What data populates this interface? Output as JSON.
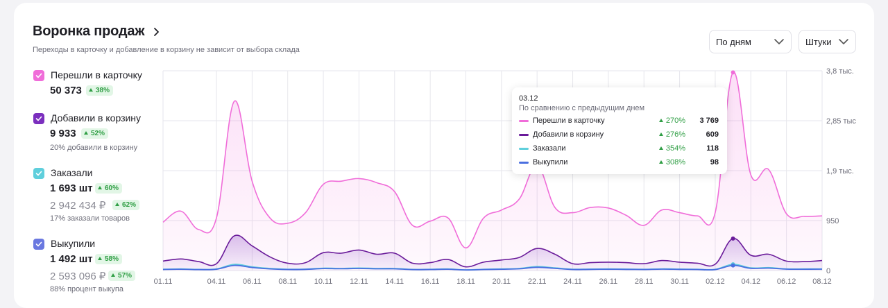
{
  "header": {
    "title": "Воронка продаж",
    "subtitle": "Переходы в карточку и добавление в корзину не зависит от выбора склада"
  },
  "controls": {
    "period": "По дням",
    "units": "Штуки"
  },
  "metrics": [
    {
      "label": "Перешли в карточку",
      "value": "50 373",
      "change": "38%",
      "color": "#f06dd9"
    },
    {
      "label": "Добавили в корзину",
      "value": "9 933",
      "change": "52%",
      "note": "20% добавили в корзину",
      "color": "#7b2fbe"
    },
    {
      "label": "Заказали",
      "value": "1 693 шт",
      "change": "60%",
      "amount": "2 942 434 ₽",
      "amount_change": "62%",
      "note": "17% заказали товаров",
      "color": "#5fcfdc"
    },
    {
      "label": "Выкупили",
      "value": "1 492 шт",
      "change": "58%",
      "amount": "2 593 096 ₽",
      "amount_change": "57%",
      "note": "88% процент выкупа",
      "color": "#6a78e0"
    }
  ],
  "tooltip": {
    "date": "03.12",
    "subtitle": "По сравнению с предыдущим днем",
    "rows": [
      {
        "name": "Перешли в карточку",
        "change": "270%",
        "value": "3 769",
        "color": "#f06dd9"
      },
      {
        "name": "Добавили в корзину",
        "change": "276%",
        "value": "609",
        "color": "#6a1b9a"
      },
      {
        "name": "Заказали",
        "change": "354%",
        "value": "118",
        "color": "#5fcfdc"
      },
      {
        "name": "Выкупили",
        "change": "308%",
        "value": "98",
        "color": "#4a6fe0"
      }
    ]
  },
  "chart_data": {
    "type": "line",
    "x_tick_labels": [
      "01.11",
      "04.11",
      "06.11",
      "08.11",
      "10.11",
      "12.11",
      "14.11",
      "16.11",
      "18.11",
      "20.11",
      "22.11",
      "24.11",
      "26.11",
      "28.11",
      "30.11",
      "02.12",
      "04.12",
      "06.12",
      "08.12"
    ],
    "y_tick_labels": [
      "3,8 тыс.",
      "2,85 тыс",
      "1,9 тыс.",
      "950",
      "0"
    ],
    "y_ticks": [
      3800,
      2850,
      1900,
      950,
      0
    ],
    "ylim": [
      0,
      3800
    ],
    "highlight_x": "03.12",
    "series": [
      {
        "name": "Перешли в карточку",
        "color": "#f06dd9",
        "fill": true,
        "points": [
          [
            "01.11",
            920
          ],
          [
            "02.11",
            1130
          ],
          [
            "03.11",
            780
          ],
          [
            "04.11",
            1000
          ],
          [
            "05.11",
            3220
          ],
          [
            "06.11",
            1700
          ],
          [
            "07.11",
            1000
          ],
          [
            "08.11",
            900
          ],
          [
            "09.11",
            1100
          ],
          [
            "10.11",
            1640
          ],
          [
            "11.11",
            1700
          ],
          [
            "12.11",
            1750
          ],
          [
            "13.11",
            1670
          ],
          [
            "14.11",
            1500
          ],
          [
            "15.11",
            860
          ],
          [
            "16.11",
            940
          ],
          [
            "17.11",
            1000
          ],
          [
            "18.11",
            430
          ],
          [
            "19.11",
            1000
          ],
          [
            "20.11",
            1150
          ],
          [
            "21.11",
            1360
          ],
          [
            "22.11",
            2000
          ],
          [
            "23.11",
            1200
          ],
          [
            "24.11",
            1100
          ],
          [
            "25.11",
            1200
          ],
          [
            "26.11",
            1190
          ],
          [
            "27.11",
            1050
          ],
          [
            "28.11",
            860
          ],
          [
            "29.11",
            1150
          ],
          [
            "30.11",
            1100
          ],
          [
            "01.12",
            1040
          ],
          [
            "02.12",
            1100
          ],
          [
            "03.12",
            3769
          ],
          [
            "04.12",
            1820
          ],
          [
            "05.12",
            1920
          ],
          [
            "06.12",
            1080
          ],
          [
            "07.12",
            1030
          ],
          [
            "08.12",
            1040
          ]
        ]
      },
      {
        "name": "Добавили в корзину",
        "color": "#6a1b9a",
        "fill": true,
        "points": [
          [
            "01.11",
            180
          ],
          [
            "02.11",
            220
          ],
          [
            "03.11",
            170
          ],
          [
            "04.11",
            130
          ],
          [
            "05.11",
            660
          ],
          [
            "06.11",
            470
          ],
          [
            "07.11",
            260
          ],
          [
            "08.11",
            140
          ],
          [
            "09.11",
            150
          ],
          [
            "10.11",
            340
          ],
          [
            "11.11",
            330
          ],
          [
            "12.11",
            390
          ],
          [
            "13.11",
            310
          ],
          [
            "14.11",
            330
          ],
          [
            "15.11",
            140
          ],
          [
            "16.11",
            150
          ],
          [
            "17.11",
            210
          ],
          [
            "18.11",
            70
          ],
          [
            "19.11",
            160
          ],
          [
            "20.11",
            200
          ],
          [
            "21.11",
            250
          ],
          [
            "22.11",
            420
          ],
          [
            "23.11",
            310
          ],
          [
            "24.11",
            130
          ],
          [
            "25.11",
            150
          ],
          [
            "26.11",
            160
          ],
          [
            "27.11",
            150
          ],
          [
            "28.11",
            130
          ],
          [
            "29.11",
            190
          ],
          [
            "30.11",
            160
          ],
          [
            "01.12",
            140
          ],
          [
            "02.12",
            120
          ],
          [
            "03.12",
            609
          ],
          [
            "04.12",
            290
          ],
          [
            "05.12",
            310
          ],
          [
            "06.12",
            180
          ],
          [
            "07.12",
            170
          ],
          [
            "08.12",
            190
          ]
        ]
      },
      {
        "name": "Заказали",
        "color": "#5fcfdc",
        "fill": false,
        "points": [
          [
            "01.11",
            25
          ],
          [
            "02.11",
            30
          ],
          [
            "03.11",
            22
          ],
          [
            "04.11",
            30
          ],
          [
            "05.11",
            118
          ],
          [
            "06.11",
            70
          ],
          [
            "07.11",
            40
          ],
          [
            "08.11",
            25
          ],
          [
            "09.11",
            28
          ],
          [
            "10.11",
            45
          ],
          [
            "11.11",
            40
          ],
          [
            "12.11",
            48
          ],
          [
            "13.11",
            40
          ],
          [
            "14.11",
            40
          ],
          [
            "15.11",
            22
          ],
          [
            "16.11",
            25
          ],
          [
            "17.11",
            30
          ],
          [
            "18.11",
            12
          ],
          [
            "19.11",
            25
          ],
          [
            "20.11",
            30
          ],
          [
            "21.11",
            40
          ],
          [
            "22.11",
            75
          ],
          [
            "23.11",
            50
          ],
          [
            "24.11",
            25
          ],
          [
            "25.11",
            28
          ],
          [
            "26.11",
            30
          ],
          [
            "27.11",
            28
          ],
          [
            "28.11",
            25
          ],
          [
            "29.11",
            32
          ],
          [
            "30.11",
            28
          ],
          [
            "01.12",
            25
          ],
          [
            "02.12",
            22
          ],
          [
            "03.12",
            118
          ],
          [
            "04.12",
            50
          ],
          [
            "05.12",
            55
          ],
          [
            "06.12",
            32
          ],
          [
            "07.12",
            30
          ],
          [
            "08.12",
            32
          ]
        ]
      },
      {
        "name": "Выкупили",
        "color": "#4a6fe0",
        "fill": false,
        "points": [
          [
            "01.11",
            20
          ],
          [
            "02.11",
            25
          ],
          [
            "03.11",
            18
          ],
          [
            "04.11",
            25
          ],
          [
            "05.11",
            98
          ],
          [
            "06.11",
            58
          ],
          [
            "07.11",
            32
          ],
          [
            "08.11",
            20
          ],
          [
            "09.11",
            22
          ],
          [
            "10.11",
            38
          ],
          [
            "11.11",
            34
          ],
          [
            "12.11",
            40
          ],
          [
            "13.11",
            33
          ],
          [
            "14.11",
            33
          ],
          [
            "15.11",
            18
          ],
          [
            "16.11",
            20
          ],
          [
            "17.11",
            25
          ],
          [
            "18.11",
            10
          ],
          [
            "19.11",
            20
          ],
          [
            "20.11",
            25
          ],
          [
            "21.11",
            33
          ],
          [
            "22.11",
            62
          ],
          [
            "23.11",
            42
          ],
          [
            "24.11",
            20
          ],
          [
            "25.11",
            23
          ],
          [
            "26.11",
            25
          ],
          [
            "27.11",
            23
          ],
          [
            "28.11",
            20
          ],
          [
            "29.11",
            27
          ],
          [
            "30.11",
            23
          ],
          [
            "01.12",
            20
          ],
          [
            "02.12",
            18
          ],
          [
            "03.12",
            98
          ],
          [
            "04.12",
            42
          ],
          [
            "05.12",
            46
          ],
          [
            "06.12",
            27
          ],
          [
            "07.12",
            25
          ],
          [
            "08.12",
            27
          ]
        ]
      }
    ]
  }
}
